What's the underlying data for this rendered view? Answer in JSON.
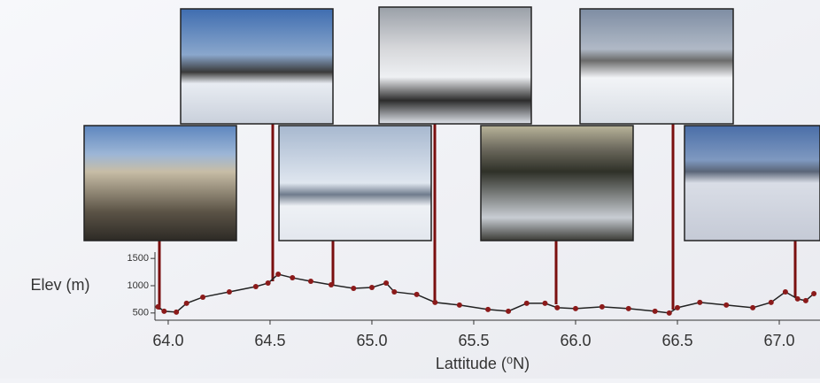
{
  "chart_data": {
    "type": "line",
    "y_label": "Elev (m)",
    "x_label": "Lattitude (⁰N)",
    "x": [
      63.95,
      63.98,
      64.04,
      64.09,
      64.17,
      64.3,
      64.43,
      64.49,
      64.54,
      64.61,
      64.7,
      64.8,
      64.91,
      65.0,
      65.07,
      65.11,
      65.22,
      65.31,
      65.43,
      65.57,
      65.67,
      65.76,
      65.85,
      65.91,
      66.0,
      66.13,
      66.26,
      66.39,
      66.46,
      66.5,
      66.61,
      66.74,
      66.87,
      66.96,
      67.03,
      67.09,
      67.13,
      67.17
    ],
    "values": [
      613,
      532,
      516,
      677,
      790,
      887,
      984,
      1048,
      1210,
      1145,
      1081,
      1016,
      952,
      968,
      1048,
      887,
      839,
      694,
      645,
      565,
      532,
      677,
      677,
      597,
      581,
      613,
      581,
      532,
      500,
      597,
      694,
      645,
      597,
      694,
      887,
      758,
      726,
      855
    ],
    "color": "#8b1a1a",
    "line_color": "#222222",
    "xlim": [
      63.935,
      67.2
    ],
    "xticks": [
      {
        "value": 64,
        "label": "64.0"
      },
      {
        "value": 64.5,
        "label": "64.5"
      },
      {
        "value": 65,
        "label": "65.0"
      },
      {
        "value": 65.5,
        "label": "65.5"
      },
      {
        "value": 66,
        "label": "66.0"
      },
      {
        "value": 66.5,
        "label": "66.5"
      },
      {
        "value": 67,
        "label": "67.0"
      }
    ],
    "ylim": [
      400,
      1600
    ],
    "yticks": [
      500,
      1000,
      1500
    ]
  }
}
